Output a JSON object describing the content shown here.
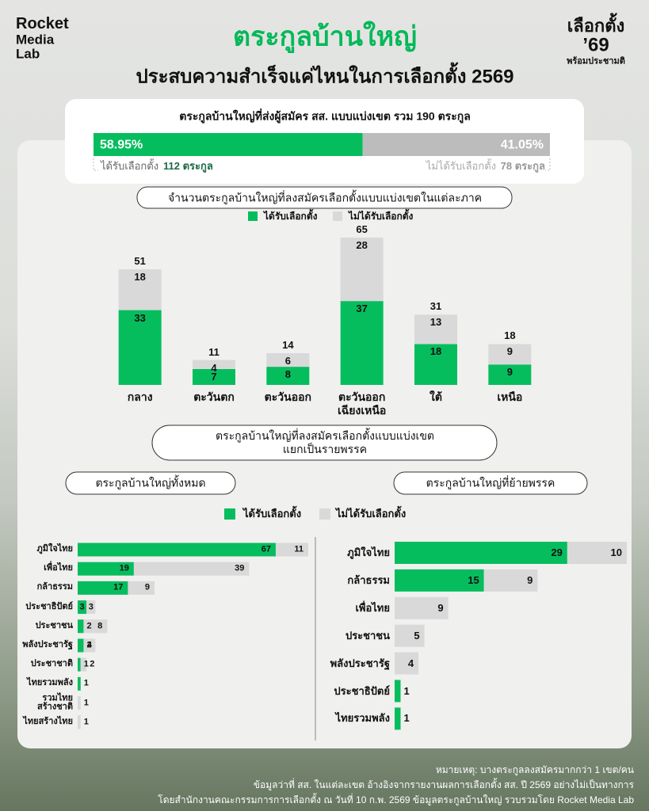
{
  "header": {
    "logo": [
      "Rocket",
      "Media",
      "Lab"
    ],
    "title": "ตระกูลบ้านใหญ่",
    "subtitle": "ประสบความสำเร็จแค่ไหนในการเลือกตั้ง 2569",
    "badge": [
      "เลือกตั้ง",
      "’69",
      "พร้อมประชามติ"
    ]
  },
  "chart_data": [
    {
      "type": "progress",
      "title": "ตระกูลบ้านใหญ่ที่ส่งผู้สมัคร สส. แบบแบ่งเขต รวม 190 ตระกูล",
      "series": [
        {
          "name": "ได้รับเลือกตั้ง",
          "color": "#06bd5e",
          "values": [
            58.95
          ],
          "value_labels": [
            "58.95%"
          ],
          "total_label": "112 ตระกูล"
        },
        {
          "name": "ไม่ได้รับเลือกตั้ง",
          "color": "#bcbcbc",
          "values": [
            41.05
          ],
          "value_labels": [
            "41.05%"
          ],
          "total_label": "78 ตระกูล"
        }
      ]
    },
    {
      "type": "stacked-bar",
      "title": "จำนวนตระกูลบ้านใหญ่ที่ลงสมัครเลือกตั้งแบบแบ่งเขตในแต่ละภาค",
      "categories": [
        "กลาง",
        "ตะวันตก",
        "ตะวันออก",
        "ตะวันออก\nเฉียงเหนือ",
        "ใต้",
        "เหนือ"
      ],
      "series": [
        {
          "name": "ได้รับเลือกตั้ง",
          "color": "#06bd5e",
          "values": [
            33,
            7,
            8,
            37,
            18,
            9
          ]
        },
        {
          "name": "ไม่ได้รับเลือกตั้ง",
          "color": "#d9d9d9",
          "values": [
            18,
            4,
            6,
            28,
            13,
            9
          ]
        }
      ],
      "totals": [
        51,
        11,
        14,
        65,
        31,
        18
      ],
      "ylim": [
        0,
        65
      ]
    },
    {
      "type": "stacked-barh",
      "title": "ตระกูลบ้านใหญ่ทั้งหมด",
      "categories": [
        "ภูมิใจไทย",
        "เพื่อไทย",
        "กล้าธรรม",
        "ประชาธิปัตย์",
        "ประชาชน",
        "พลังประชารัฐ",
        "ประชาชาติ",
        "ไทยรวมพลัง",
        "รวมไทย\nสร้างชาติ",
        "ไทยสร้างไทย"
      ],
      "series": [
        {
          "name": "ได้รับเลือกตั้ง",
          "color": "#06bd5e",
          "values": [
            67,
            19,
            17,
            3,
            2,
            2,
            1,
            1,
            0,
            0
          ]
        },
        {
          "name": "ไม่ได้รับเลือกตั้ง",
          "color": "#d9d9d9",
          "values": [
            11,
            39,
            9,
            3,
            8,
            4,
            2,
            0,
            1,
            1
          ]
        }
      ],
      "xlim": [
        0,
        78
      ]
    },
    {
      "type": "stacked-barh",
      "title": "ตระกูลบ้านใหญ่ที่ย้ายพรรค",
      "categories": [
        "ภูมิใจไทย",
        "กล้าธรรม",
        "เพื่อไทย",
        "ประชาชน",
        "พลังประชารัฐ",
        "ประชาธิปัตย์",
        "ไทยรวมพลัง"
      ],
      "series": [
        {
          "color": "#06bd5e",
          "values": [
            29,
            15,
            0,
            0,
            0,
            1,
            1
          ]
        },
        {
          "color": "#d9d9d9",
          "values": [
            10,
            9,
            9,
            5,
            4,
            0,
            0
          ]
        }
      ],
      "xlim": [
        0,
        39
      ]
    }
  ],
  "party_section": {
    "title": "ตระกูลบ้านใหญ่ที่ลงสมัครเลือกตั้งแบบแบ่งเขต\nแยกเป็นรายพรรค"
  },
  "notes": [
    "หมายเหตุ: บางตระกูลลงสมัครมากกว่า 1 เขต/คน",
    "ข้อมูลว่าที่ สส. ในแต่ละเขต อ้างอิงจากรายงานผลการเลือกตั้ง สส. ปี 2569 อย่างไม่เป็นทางการ",
    "โดยสำนักงานคณะกรรมการการเลือกตั้ง ณ วันที่ 10 ก.พ. 2569 ข้อมูลตระกูลบ้านใหญ่ รวบรวมโดย Rocket Media Lab"
  ]
}
